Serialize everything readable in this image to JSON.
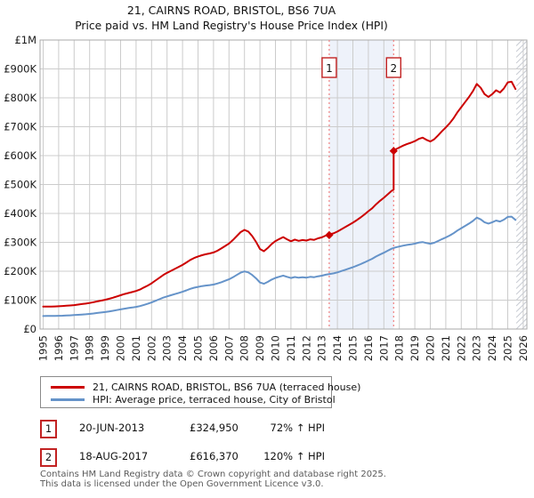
{
  "title": "21, CAIRNS ROAD, BRISTOL, BS6 7UA",
  "subtitle": "Price paid vs. HM Land Registry's House Price Index (HPI)",
  "chart_data": {
    "type": "line",
    "title": "21, CAIRNS ROAD, BRISTOL, BS6 7UA — Price paid vs. HPI",
    "xlabel": "",
    "ylabel": "",
    "x_start": 1995,
    "x_step_years": 0.25,
    "ylim": [
      0,
      1000000
    ],
    "grid": true,
    "y_tick_labels": [
      "£0",
      "£100K",
      "£200K",
      "£300K",
      "£400K",
      "£500K",
      "£600K",
      "£700K",
      "£800K",
      "£900K",
      "£1M"
    ],
    "x_tick_labels": [
      "1995",
      "1996",
      "1997",
      "1998",
      "1999",
      "2000",
      "2001",
      "2002",
      "2003",
      "2004",
      "2005",
      "2006",
      "2007",
      "2008",
      "2009",
      "2010",
      "2011",
      "2012",
      "2013",
      "2014",
      "2015",
      "2016",
      "2017",
      "2018",
      "2019",
      "2020",
      "2021",
      "2022",
      "2023",
      "2024",
      "2025",
      "2026"
    ],
    "series": [
      {
        "name": "HPI: Average price, terraced house, City of Bristol",
        "color": "#6593c9",
        "values_gbp_thousands": [
          45,
          45.3,
          45.1,
          45.4,
          45.8,
          46.3,
          46.8,
          47.4,
          48.2,
          49.2,
          50.2,
          51.2,
          52.4,
          54,
          55.6,
          57.2,
          58.8,
          60.8,
          63,
          65.5,
          68,
          70.5,
          72.5,
          74.5,
          76.5,
          79.5,
          83.5,
          87.5,
          92,
          97.5,
          103,
          108.5,
          113,
          117,
          121,
          125,
          129,
          134,
          139,
          143,
          146,
          148.5,
          150.5,
          152,
          154,
          157.5,
          162,
          167,
          172,
          179,
          187,
          195,
          199.5,
          196,
          187,
          175,
          161,
          156.5,
          163,
          171,
          177,
          181,
          185,
          180.5,
          176.5,
          180,
          177.5,
          179,
          178,
          180.5,
          179.5,
          182.5,
          184.5,
          188,
          190.5,
          192.5,
          196,
          200.5,
          205,
          209.5,
          214,
          219,
          224.5,
          230.5,
          237,
          243,
          251,
          258,
          264,
          271,
          278,
          282.5,
          285.5,
          288.5,
          291,
          293,
          295.5,
          299,
          301,
          297.5,
          295,
          298.5,
          304.5,
          311,
          317,
          323.5,
          331.5,
          341,
          349,
          357,
          365,
          374,
          385.5,
          379.5,
          369.5,
          365,
          369.5,
          375.5,
          372,
          378.5,
          388,
          389,
          377.5
        ]
      },
      {
        "name": "21, CAIRNS ROAD, BRISTOL, BS6 7UA (terraced house)",
        "color": "#cc0000",
        "derived": "hpi_times_multiplier",
        "multiplier_before_sale_2": 1.72,
        "multiplier_after_sale_2": 2.2
      }
    ],
    "sales": [
      {
        "n": "1",
        "t": 2013.47,
        "date": "20-JUN-2013",
        "price": 324950,
        "price_label": "£324,950",
        "hpi_label": "72% ↑ HPI"
      },
      {
        "n": "2",
        "t": 2017.63,
        "date": "18-AUG-2017",
        "price": 616370,
        "price_label": "£616,370",
        "hpi_label": "120% ↑ HPI"
      }
    ],
    "legend_position": "bottom-left",
    "legend": [
      {
        "label": "21, CAIRNS ROAD, BRISTOL, BS6 7UA (terraced house)",
        "color": "#cc0000"
      },
      {
        "label": "HPI: Average price, terraced house, City of Bristol",
        "color": "#6593c9"
      }
    ],
    "annotations_region": {
      "shaded_between_sales": true,
      "band_color": "#eef2fa",
      "dotted_line_color": "#f08080"
    },
    "future_hatch_after_t": 2025.55
  },
  "footer": {
    "line1": "Contains HM Land Registry data © Crown copyright and database right 2025.",
    "line2": "This data is licensed under the Open Government Licence v3.0."
  }
}
